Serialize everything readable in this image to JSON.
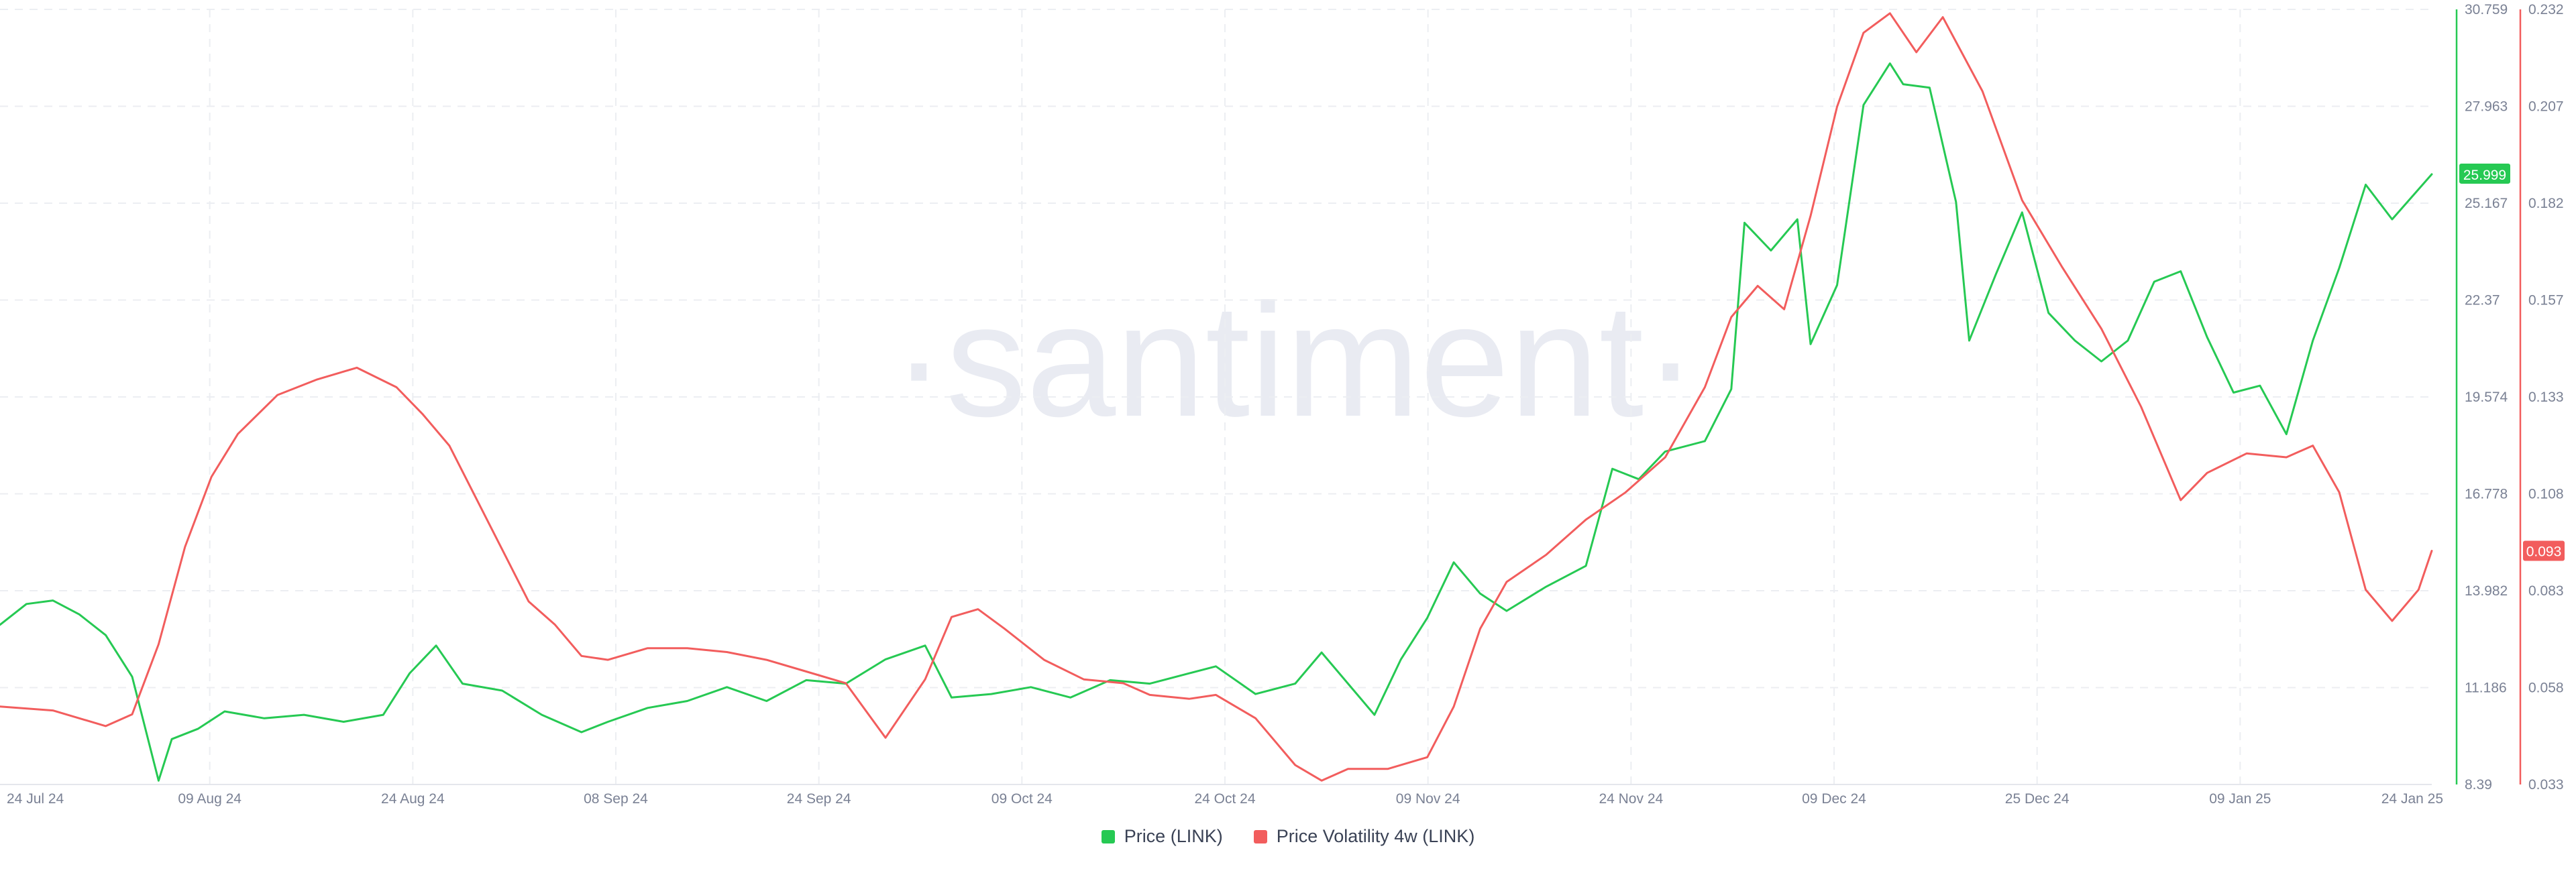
{
  "watermark": "·santiment·",
  "chart_data": {
    "type": "line",
    "x_ticks": [
      "24 Jul 24",
      "09 Aug 24",
      "24 Aug 24",
      "08 Sep 24",
      "24 Sep 24",
      "09 Oct 24",
      "24 Oct 24",
      "09 Nov 24",
      "24 Nov 24",
      "09 Dec 24",
      "25 Dec 24",
      "09 Jan 25",
      "24 Jan 25"
    ],
    "xlim": [
      "2024-07-24",
      "2025-01-24"
    ],
    "price_axis": {
      "ticks": [
        "30.759",
        "27.963",
        "25.167",
        "22.37",
        "19.574",
        "16.778",
        "13.982",
        "11.186",
        "8.39"
      ],
      "ylim": [
        8.39,
        30.759
      ],
      "current_label": "25.999",
      "color": "#26c953"
    },
    "volatility_axis": {
      "ticks": [
        "0.232",
        "0.207",
        "0.182",
        "0.157",
        "0.133",
        "0.108",
        "0.083",
        "0.058",
        "0.033"
      ],
      "ylim": [
        0.033,
        0.232
      ],
      "current_label": "0.093",
      "color": "#f25d5d"
    },
    "series": [
      {
        "name": "Price (LINK)",
        "axis": "left",
        "color": "#26c953",
        "points": [
          [
            "2024-07-24",
            13.0
          ],
          [
            "2024-07-26",
            13.6
          ],
          [
            "2024-07-28",
            13.7
          ],
          [
            "2024-07-30",
            13.3
          ],
          [
            "2024-08-01",
            12.7
          ],
          [
            "2024-08-03",
            11.5
          ],
          [
            "2024-08-05",
            8.5
          ],
          [
            "2024-08-06",
            9.7
          ],
          [
            "2024-08-08",
            10.0
          ],
          [
            "2024-08-10",
            10.5
          ],
          [
            "2024-08-13",
            10.3
          ],
          [
            "2024-08-16",
            10.4
          ],
          [
            "2024-08-19",
            10.2
          ],
          [
            "2024-08-22",
            10.4
          ],
          [
            "2024-08-24",
            11.6
          ],
          [
            "2024-08-26",
            12.4
          ],
          [
            "2024-08-28",
            11.3
          ],
          [
            "2024-08-31",
            11.1
          ],
          [
            "2024-09-03",
            10.4
          ],
          [
            "2024-09-06",
            9.9
          ],
          [
            "2024-09-08",
            10.2
          ],
          [
            "2024-09-11",
            10.6
          ],
          [
            "2024-09-14",
            10.8
          ],
          [
            "2024-09-17",
            11.2
          ],
          [
            "2024-09-20",
            10.8
          ],
          [
            "2024-09-23",
            11.4
          ],
          [
            "2024-09-26",
            11.3
          ],
          [
            "2024-09-29",
            12.0
          ],
          [
            "2024-10-02",
            12.4
          ],
          [
            "2024-10-04",
            10.9
          ],
          [
            "2024-10-07",
            11.0
          ],
          [
            "2024-10-10",
            11.2
          ],
          [
            "2024-10-13",
            10.9
          ],
          [
            "2024-10-16",
            11.4
          ],
          [
            "2024-10-19",
            11.3
          ],
          [
            "2024-10-22",
            11.6
          ],
          [
            "2024-10-24",
            11.8
          ],
          [
            "2024-10-27",
            11.0
          ],
          [
            "2024-10-30",
            11.3
          ],
          [
            "2024-11-01",
            12.2
          ],
          [
            "2024-11-03",
            11.3
          ],
          [
            "2024-11-05",
            10.4
          ],
          [
            "2024-11-07",
            12.0
          ],
          [
            "2024-11-09",
            13.2
          ],
          [
            "2024-11-11",
            14.8
          ],
          [
            "2024-11-13",
            13.9
          ],
          [
            "2024-11-15",
            13.4
          ],
          [
            "2024-11-18",
            14.1
          ],
          [
            "2024-11-21",
            14.7
          ],
          [
            "2024-11-23",
            17.5
          ],
          [
            "2024-11-25",
            17.2
          ],
          [
            "2024-11-27",
            18.0
          ],
          [
            "2024-11-30",
            18.3
          ],
          [
            "2024-12-02",
            19.8
          ],
          [
            "2024-12-03",
            24.6
          ],
          [
            "2024-12-05",
            23.8
          ],
          [
            "2024-12-07",
            24.7
          ],
          [
            "2024-12-08",
            21.1
          ],
          [
            "2024-12-10",
            22.8
          ],
          [
            "2024-12-12",
            28.0
          ],
          [
            "2024-12-14",
            29.2
          ],
          [
            "2024-12-15",
            28.6
          ],
          [
            "2024-12-17",
            28.5
          ],
          [
            "2024-12-19",
            25.2
          ],
          [
            "2024-12-20",
            21.2
          ],
          [
            "2024-12-22",
            23.1
          ],
          [
            "2024-12-24",
            24.9
          ],
          [
            "2024-12-26",
            22.0
          ],
          [
            "2024-12-28",
            21.2
          ],
          [
            "2024-12-30",
            20.6
          ],
          [
            "2025-01-01",
            21.2
          ],
          [
            "2025-01-03",
            22.9
          ],
          [
            "2025-01-05",
            23.2
          ],
          [
            "2025-01-07",
            21.3
          ],
          [
            "2025-01-09",
            19.7
          ],
          [
            "2025-01-11",
            19.9
          ],
          [
            "2025-01-13",
            18.5
          ],
          [
            "2025-01-15",
            21.2
          ],
          [
            "2025-01-17",
            23.3
          ],
          [
            "2025-01-19",
            25.7
          ],
          [
            "2025-01-21",
            24.7
          ],
          [
            "2025-01-24",
            26.0
          ]
        ]
      },
      {
        "name": "Price Volatility 4w (LINK)",
        "axis": "right",
        "color": "#f25d5d",
        "points": [
          [
            "2024-07-24",
            0.053
          ],
          [
            "2024-07-28",
            0.052
          ],
          [
            "2024-08-01",
            0.048
          ],
          [
            "2024-08-03",
            0.051
          ],
          [
            "2024-08-05",
            0.069
          ],
          [
            "2024-08-07",
            0.094
          ],
          [
            "2024-08-09",
            0.112
          ],
          [
            "2024-08-11",
            0.123
          ],
          [
            "2024-08-14",
            0.133
          ],
          [
            "2024-08-17",
            0.137
          ],
          [
            "2024-08-20",
            0.14
          ],
          [
            "2024-08-23",
            0.135
          ],
          [
            "2024-08-25",
            0.128
          ],
          [
            "2024-08-27",
            0.12
          ],
          [
            "2024-08-30",
            0.1
          ],
          [
            "2024-09-02",
            0.08
          ],
          [
            "2024-09-04",
            0.074
          ],
          [
            "2024-09-06",
            0.066
          ],
          [
            "2024-09-08",
            0.065
          ],
          [
            "2024-09-11",
            0.068
          ],
          [
            "2024-09-14",
            0.068
          ],
          [
            "2024-09-17",
            0.067
          ],
          [
            "2024-09-20",
            0.065
          ],
          [
            "2024-09-23",
            0.062
          ],
          [
            "2024-09-26",
            0.059
          ],
          [
            "2024-09-29",
            0.045
          ],
          [
            "2024-10-02",
            0.06
          ],
          [
            "2024-10-04",
            0.076
          ],
          [
            "2024-10-06",
            0.078
          ],
          [
            "2024-10-08",
            0.073
          ],
          [
            "2024-10-11",
            0.065
          ],
          [
            "2024-10-14",
            0.06
          ],
          [
            "2024-10-17",
            0.059
          ],
          [
            "2024-10-19",
            0.056
          ],
          [
            "2024-10-22",
            0.055
          ],
          [
            "2024-10-24",
            0.056
          ],
          [
            "2024-10-27",
            0.05
          ],
          [
            "2024-10-30",
            0.038
          ],
          [
            "2024-11-01",
            0.034
          ],
          [
            "2024-11-03",
            0.037
          ],
          [
            "2024-11-06",
            0.037
          ],
          [
            "2024-11-09",
            0.04
          ],
          [
            "2024-11-11",
            0.053
          ],
          [
            "2024-11-13",
            0.073
          ],
          [
            "2024-11-15",
            0.085
          ],
          [
            "2024-11-18",
            0.092
          ],
          [
            "2024-11-21",
            0.101
          ],
          [
            "2024-11-24",
            0.108
          ],
          [
            "2024-11-27",
            0.117
          ],
          [
            "2024-11-30",
            0.135
          ],
          [
            "2024-12-02",
            0.153
          ],
          [
            "2024-12-04",
            0.161
          ],
          [
            "2024-12-06",
            0.155
          ],
          [
            "2024-12-08",
            0.179
          ],
          [
            "2024-12-10",
            0.207
          ],
          [
            "2024-12-12",
            0.226
          ],
          [
            "2024-12-14",
            0.231
          ],
          [
            "2024-12-16",
            0.221
          ],
          [
            "2024-12-18",
            0.23
          ],
          [
            "2024-12-21",
            0.211
          ],
          [
            "2024-12-24",
            0.183
          ],
          [
            "2024-12-27",
            0.166
          ],
          [
            "2024-12-30",
            0.15
          ],
          [
            "2025-01-02",
            0.13
          ],
          [
            "2025-01-05",
            0.106
          ],
          [
            "2025-01-07",
            0.113
          ],
          [
            "2025-01-10",
            0.118
          ],
          [
            "2025-01-13",
            0.117
          ],
          [
            "2025-01-15",
            0.12
          ],
          [
            "2025-01-17",
            0.108
          ],
          [
            "2025-01-19",
            0.083
          ],
          [
            "2025-01-21",
            0.075
          ],
          [
            "2025-01-23",
            0.083
          ],
          [
            "2025-01-24",
            0.093
          ]
        ]
      }
    ]
  }
}
